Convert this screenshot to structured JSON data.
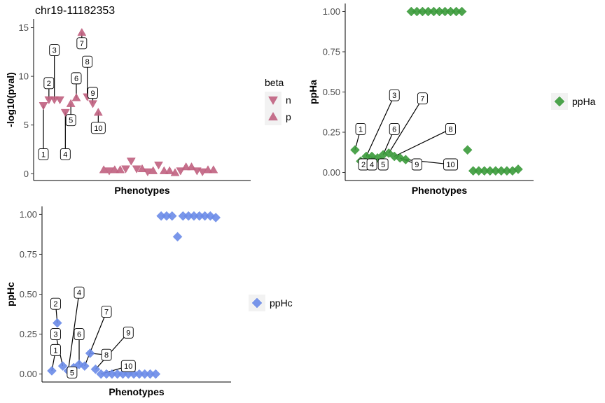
{
  "title": "chr19-11182353",
  "colors": {
    "pval": "#c0607f",
    "ppHa": "#3a9a3a",
    "ppHc": "#6a8be8"
  },
  "chart_data": [
    {
      "id": "pval",
      "type": "scatter",
      "title": "chr19-11182353",
      "xlabel": "Phenotypes",
      "ylabel": "-log10(pval)",
      "ylim": [
        -0.7,
        15.9
      ],
      "yticks": [
        0,
        5,
        10,
        15
      ],
      "n": 37,
      "legend": {
        "title": "beta",
        "entries": [
          "n",
          "p"
        ]
      },
      "points": [
        {
          "x": 1,
          "y": 7.0,
          "beta": "n"
        },
        {
          "x": 2,
          "y": 7.6,
          "beta": "n"
        },
        {
          "x": 3,
          "y": 7.6,
          "beta": "n"
        },
        {
          "x": 4,
          "y": 7.6,
          "beta": "n"
        },
        {
          "x": 5,
          "y": 6.3,
          "beta": "n"
        },
        {
          "x": 6,
          "y": 7.2,
          "beta": "p"
        },
        {
          "x": 7,
          "y": 7.8,
          "beta": "p"
        },
        {
          "x": 8,
          "y": 14.5,
          "beta": "p"
        },
        {
          "x": 9,
          "y": 7.9,
          "beta": "n"
        },
        {
          "x": 10,
          "y": 7.2,
          "beta": "n"
        },
        {
          "x": 11,
          "y": 6.3,
          "beta": "p"
        },
        {
          "x": 12,
          "y": 0.4,
          "beta": "p"
        },
        {
          "x": 13,
          "y": 0.3,
          "beta": "n"
        },
        {
          "x": 14,
          "y": 0.4,
          "beta": "p"
        },
        {
          "x": 15,
          "y": 0.4,
          "beta": "p"
        },
        {
          "x": 16,
          "y": 0.5,
          "beta": "n"
        },
        {
          "x": 17,
          "y": 1.3,
          "beta": "n"
        },
        {
          "x": 18,
          "y": 0.5,
          "beta": "n"
        },
        {
          "x": 19,
          "y": 0.5,
          "beta": "p"
        },
        {
          "x": 20,
          "y": 0.2,
          "beta": "n"
        },
        {
          "x": 21,
          "y": 0.3,
          "beta": "p"
        },
        {
          "x": 22,
          "y": 0.9,
          "beta": "n"
        },
        {
          "x": 23,
          "y": 0.3,
          "beta": "p"
        },
        {
          "x": 24,
          "y": 0.3,
          "beta": "p"
        },
        {
          "x": 25,
          "y": 0.1,
          "beta": "p"
        },
        {
          "x": 26,
          "y": 0.3,
          "beta": "n"
        },
        {
          "x": 27,
          "y": 0.7,
          "beta": "p"
        },
        {
          "x": 28,
          "y": 0.7,
          "beta": "p"
        },
        {
          "x": 29,
          "y": 0.3,
          "beta": "n"
        },
        {
          "x": 30,
          "y": 0.2,
          "beta": "n"
        },
        {
          "x": 31,
          "y": 0.4,
          "beta": "p"
        },
        {
          "x": 32,
          "y": 0.4,
          "beta": "p"
        }
      ],
      "labels": [
        {
          "text": "1",
          "px": 1,
          "ly": 2.0
        },
        {
          "text": "2",
          "px": 2,
          "ly": 9.3
        },
        {
          "text": "3",
          "px": 3,
          "ly": 12.7
        },
        {
          "text": "4",
          "px": 5,
          "ly": 2.0
        },
        {
          "text": "5",
          "px": 6,
          "ly": 5.5
        },
        {
          "text": "6",
          "px": 7,
          "ly": 9.8
        },
        {
          "text": "7",
          "px": 8,
          "ly": 13.4
        },
        {
          "text": "8",
          "px": 9,
          "ly": 11.5
        },
        {
          "text": "9",
          "px": 10,
          "ly": 8.3
        },
        {
          "text": "10",
          "px": 11,
          "ly": 4.7
        }
      ]
    },
    {
      "id": "ppHa",
      "type": "scatter",
      "xlabel": "Phenotypes",
      "ylabel": "ppHa",
      "ylim": [
        -0.05,
        1.05
      ],
      "yticks": [
        0.0,
        0.25,
        0.5,
        0.75,
        1.0
      ],
      "ytick_labels": [
        "0.00",
        "0.25",
        "0.50",
        "0.75",
        "1.00"
      ],
      "n": 31,
      "legend": {
        "title": "",
        "entries": [
          "ppHa"
        ]
      },
      "points": [
        {
          "x": 1,
          "y": 0.14
        },
        {
          "x": 2,
          "y": 0.07
        },
        {
          "x": 3,
          "y": 0.1
        },
        {
          "x": 4,
          "y": 0.1
        },
        {
          "x": 5,
          "y": 0.09
        },
        {
          "x": 6,
          "y": 0.11
        },
        {
          "x": 7,
          "y": 0.12
        },
        {
          "x": 8,
          "y": 0.1
        },
        {
          "x": 9,
          "y": 0.09
        },
        {
          "x": 10,
          "y": 0.08
        },
        {
          "x": 11,
          "y": 1.0
        },
        {
          "x": 12,
          "y": 1.0
        },
        {
          "x": 13,
          "y": 1.0
        },
        {
          "x": 14,
          "y": 1.0
        },
        {
          "x": 15,
          "y": 1.0
        },
        {
          "x": 16,
          "y": 1.0
        },
        {
          "x": 17,
          "y": 1.0
        },
        {
          "x": 18,
          "y": 1.0
        },
        {
          "x": 19,
          "y": 1.0
        },
        {
          "x": 20,
          "y": 1.0
        },
        {
          "x": 21,
          "y": 0.14
        },
        {
          "x": 22,
          "y": 0.01
        },
        {
          "x": 23,
          "y": 0.01
        },
        {
          "x": 24,
          "y": 0.01
        },
        {
          "x": 25,
          "y": 0.01
        },
        {
          "x": 26,
          "y": 0.01
        },
        {
          "x": 27,
          "y": 0.01
        },
        {
          "x": 28,
          "y": 0.01
        },
        {
          "x": 29,
          "y": 0.01
        },
        {
          "x": 30,
          "y": 0.02
        }
      ],
      "labels": [
        {
          "text": "1",
          "px": 1,
          "lx": 2,
          "ly": 0.27
        },
        {
          "text": "2",
          "px": 2,
          "lx": 2.5,
          "ly": 0.05
        },
        {
          "text": "3",
          "px": 3,
          "lx": 8,
          "ly": 0.48
        },
        {
          "text": "4",
          "px": 4,
          "lx": 4,
          "ly": 0.05
        },
        {
          "text": "5",
          "px": 5,
          "lx": 6,
          "ly": 0.05
        },
        {
          "text": "6",
          "px": 6,
          "lx": 8,
          "ly": 0.27
        },
        {
          "text": "7",
          "px": 7,
          "lx": 13,
          "ly": 0.46
        },
        {
          "text": "8",
          "px": 8,
          "lx": 18,
          "ly": 0.27
        },
        {
          "text": "9",
          "px": 9,
          "lx": 12,
          "ly": 0.05
        },
        {
          "text": "10",
          "px": 10,
          "lx": 18,
          "ly": 0.05
        }
      ]
    },
    {
      "id": "ppHc",
      "type": "scatter",
      "xlabel": "Phenotypes",
      "ylabel": "ppHc",
      "ylim": [
        -0.05,
        1.05
      ],
      "yticks": [
        0.0,
        0.25,
        0.5,
        0.75,
        1.0
      ],
      "ytick_labels": [
        "0.00",
        "0.25",
        "0.50",
        "0.75",
        "1.00"
      ],
      "n": 32,
      "legend": {
        "title": "",
        "entries": [
          "ppHc"
        ]
      },
      "points": [
        {
          "x": 1,
          "y": 0.02
        },
        {
          "x": 2,
          "y": 0.32
        },
        {
          "x": 3,
          "y": 0.05
        },
        {
          "x": 4,
          "y": 0.02
        },
        {
          "x": 5,
          "y": 0.04
        },
        {
          "x": 6,
          "y": 0.06
        },
        {
          "x": 7,
          "y": 0.05
        },
        {
          "x": 8,
          "y": 0.13
        },
        {
          "x": 9,
          "y": 0.03
        },
        {
          "x": 10,
          "y": 0.0
        },
        {
          "x": 11,
          "y": 0.0
        },
        {
          "x": 12,
          "y": 0.0
        },
        {
          "x": 13,
          "y": 0.0
        },
        {
          "x": 14,
          "y": 0.0
        },
        {
          "x": 15,
          "y": 0.0
        },
        {
          "x": 16,
          "y": 0.0
        },
        {
          "x": 17,
          "y": 0.0
        },
        {
          "x": 18,
          "y": 0.0
        },
        {
          "x": 19,
          "y": 0.0
        },
        {
          "x": 20,
          "y": 0.0
        },
        {
          "x": 21,
          "y": 0.99
        },
        {
          "x": 22,
          "y": 0.99
        },
        {
          "x": 23,
          "y": 0.99
        },
        {
          "x": 24,
          "y": 0.86
        },
        {
          "x": 25,
          "y": 0.99
        },
        {
          "x": 26,
          "y": 0.99
        },
        {
          "x": 27,
          "y": 0.99
        },
        {
          "x": 28,
          "y": 0.99
        },
        {
          "x": 29,
          "y": 0.99
        },
        {
          "x": 30,
          "y": 0.99
        },
        {
          "x": 31,
          "y": 0.98
        }
      ],
      "labels": [
        {
          "text": "1",
          "px": 1,
          "lx": 1.7,
          "ly": 0.15
        },
        {
          "text": "2",
          "px": 2,
          "lx": 1.7,
          "ly": 0.44
        },
        {
          "text": "3",
          "px": 3,
          "lx": 1.7,
          "ly": 0.25
        },
        {
          "text": "4",
          "px": 4,
          "lx": 6,
          "ly": 0.51
        },
        {
          "text": "5",
          "px": 5,
          "lx": 4.7,
          "ly": 0.01
        },
        {
          "text": "6",
          "px": 6,
          "lx": 6,
          "ly": 0.25
        },
        {
          "text": "7",
          "px": 7,
          "lx": 11,
          "ly": 0.39
        },
        {
          "text": "8",
          "px": 8,
          "lx": 11,
          "ly": 0.12
        },
        {
          "text": "9",
          "px": 9,
          "lx": 15,
          "ly": 0.26
        },
        {
          "text": "10",
          "px": 10,
          "lx": 15,
          "ly": 0.05
        }
      ]
    }
  ]
}
